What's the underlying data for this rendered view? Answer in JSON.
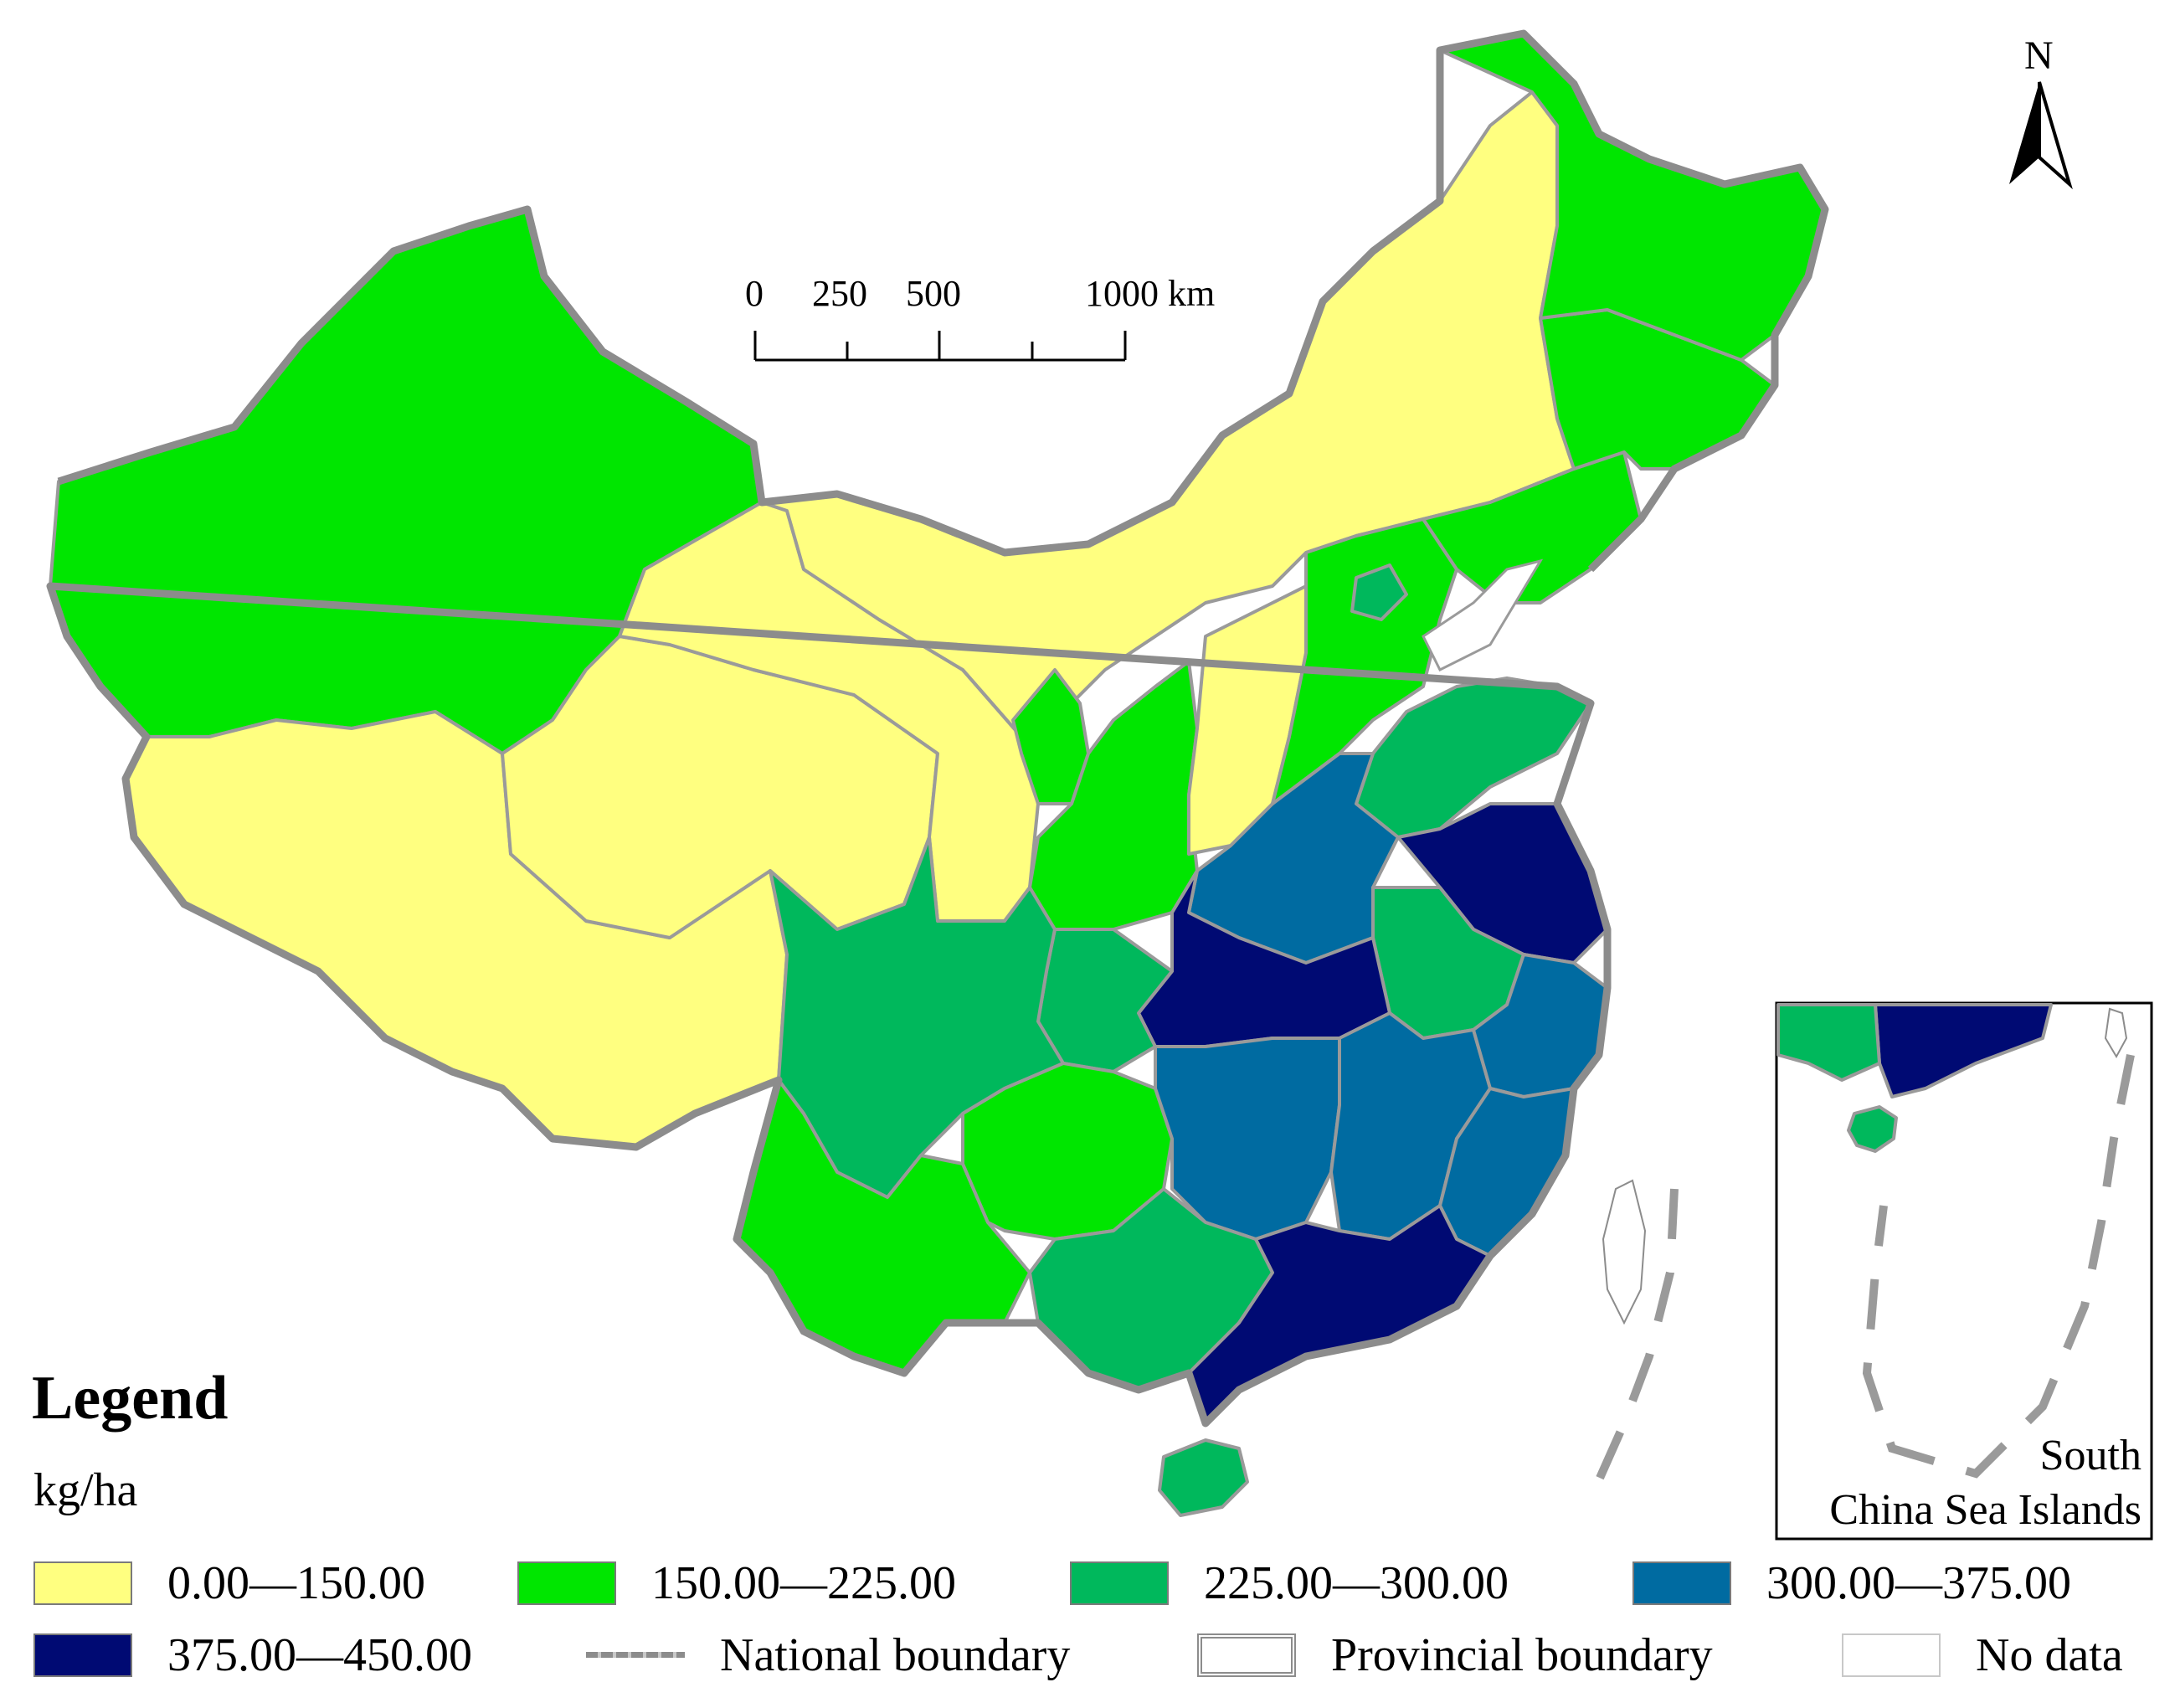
{
  "north_arrow": {
    "label": "N"
  },
  "scale_bar": {
    "ticks": [
      "0",
      "250",
      "500",
      "1000 km"
    ]
  },
  "inset": {
    "label_line1": "South",
    "label_line2": "China Sea Islands"
  },
  "legend": {
    "title": "Legend",
    "unit": "kg/ha",
    "classes": [
      {
        "label": "0.00—150.00",
        "color": "#ffff80"
      },
      {
        "label": "150.00—225.00",
        "color": "#00e600"
      },
      {
        "label": "225.00—300.00",
        "color": "#00b85c"
      },
      {
        "label": "300.00—375.00",
        "color": "#006ba1"
      },
      {
        "label": "375.00—450.00",
        "color": "#000a73"
      }
    ],
    "national_boundary": "National boundary",
    "provincial_boundary": "Provincial boundary",
    "no_data": "No data"
  }
}
